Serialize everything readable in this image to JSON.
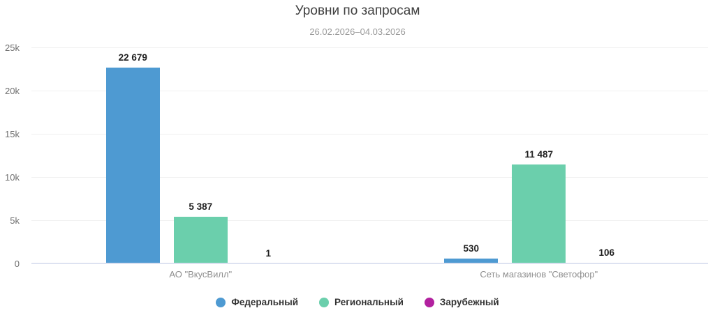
{
  "chart_data": {
    "type": "bar",
    "title": "Уровни по запросам",
    "subtitle": "26.02.2026–04.03.2026",
    "categories": [
      "АО \"ВкусВилл\"",
      "Сеть магазинов \"Светофор\""
    ],
    "series": [
      {
        "name": "Федеральный",
        "color": "#4e9ad2",
        "values": [
          22679,
          530
        ],
        "labels": [
          "22 679",
          "530"
        ]
      },
      {
        "name": "Региональный",
        "color": "#6bcfac",
        "values": [
          5387,
          11487
        ],
        "labels": [
          "5 387",
          "11 487"
        ]
      },
      {
        "name": "Зарубежный",
        "color": "#b2219f",
        "values": [
          1,
          106
        ],
        "labels": [
          "1",
          "106"
        ]
      }
    ],
    "ylim": [
      0,
      25000
    ],
    "yticks": [
      {
        "value": 0,
        "label": "0"
      },
      {
        "value": 5000,
        "label": "5k"
      },
      {
        "value": 10000,
        "label": "10k"
      },
      {
        "value": 15000,
        "label": "15k"
      },
      {
        "value": 20000,
        "label": "20k"
      },
      {
        "value": 25000,
        "label": "25k"
      }
    ],
    "grid": true,
    "legend_position": "bottom"
  }
}
